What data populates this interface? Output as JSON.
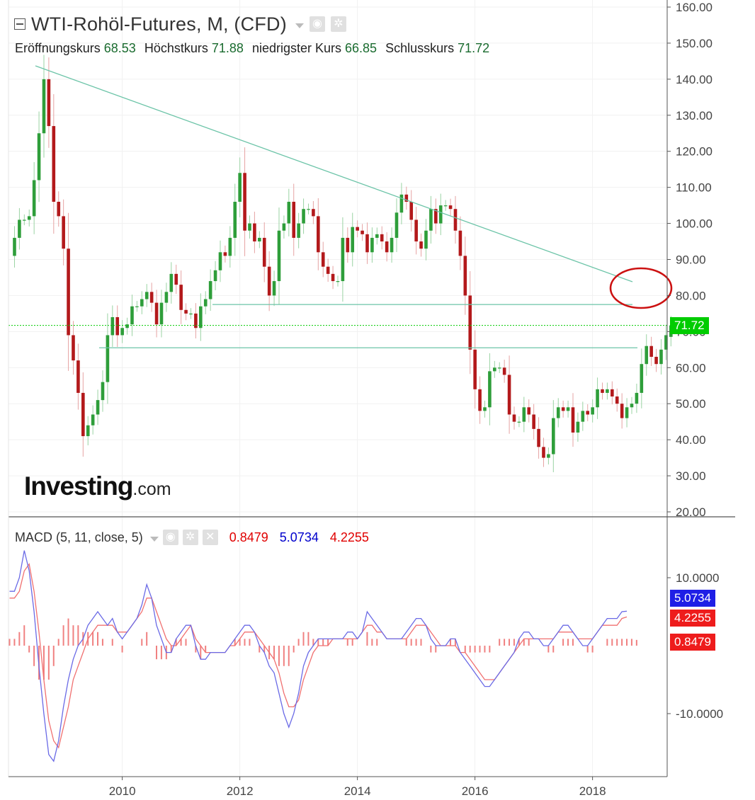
{
  "header": {
    "title": "WTI-Rohöl-Futures, M, (CFD)",
    "ohlc": [
      {
        "label": "Eröffnungskurs",
        "value": "68.53"
      },
      {
        "label": "Höchstkurs",
        "value": "71.88"
      },
      {
        "label": "niedrigster Kurs",
        "value": "66.85"
      },
      {
        "label": "Schlusskurs",
        "value": "71.72"
      }
    ]
  },
  "logo": {
    "text": "Investing",
    "suffix": ".com"
  },
  "macd_panel": {
    "label": "MACD (5, 11, close, 5)",
    "values": [
      "0.8479",
      "5.0734",
      "4.2255"
    ]
  },
  "colors": {
    "up": "#2e9e3a",
    "down": "#b3191b",
    "trend": "#6cc4a8",
    "current_price": "#00cc00",
    "macd_line": "#6a6ae6",
    "signal_line": "#f07070",
    "histogram": "#f08080",
    "annotation_circle": "#cc1111"
  },
  "chart_data": [
    {
      "type": "candlestick",
      "title": "WTI-Rohöl-Futures, M, (CFD)",
      "interval": "monthly",
      "y_ticks": [
        "160.00",
        "150.00",
        "140.00",
        "130.00",
        "120.00",
        "110.00",
        "100.00",
        "90.00",
        "80.00",
        "70.00",
        "60.00",
        "50.00",
        "40.00",
        "30.00",
        "20.00"
      ],
      "ylim": [
        20,
        160
      ],
      "x_ticks": [
        "2010",
        "2012",
        "2014",
        "2016",
        "2018"
      ],
      "x_start": 2008.083,
      "x_end": 2019.25,
      "current_price": {
        "label": "71.72",
        "value": 71.72
      },
      "series": [
        {
          "name": "",
          "closes": [
            96,
            101,
            101,
            102,
            112,
            125,
            140,
            127,
            106,
            102,
            93,
            69,
            62,
            53,
            41,
            44,
            47,
            51,
            56,
            69,
            74,
            69,
            71,
            72,
            77,
            77,
            79,
            81,
            78,
            72,
            78,
            81,
            86,
            83,
            76,
            75,
            75,
            71,
            77,
            79,
            84,
            87,
            92,
            91,
            96,
            106,
            114,
            98,
            100,
            95,
            96,
            88,
            80,
            84,
            98,
            100,
            106,
            96,
            100,
            104,
            104,
            102,
            92,
            88,
            86,
            84,
            84,
            96,
            92,
            99,
            98,
            97,
            92,
            96,
            97,
            95,
            92,
            96,
            103,
            108,
            106,
            101,
            95,
            93,
            98,
            104,
            100,
            105,
            105,
            104,
            98,
            91,
            80,
            65,
            54,
            48,
            49,
            59,
            60,
            60,
            58,
            47,
            45,
            45,
            49,
            47,
            43,
            38,
            35,
            36,
            46,
            49,
            48,
            49,
            42,
            45,
            48,
            47,
            49,
            54,
            53,
            54,
            52,
            50,
            46,
            49,
            50,
            53,
            61,
            66,
            63,
            61,
            65,
            69,
            71.72
          ],
          "opens": [
            91,
            96,
            101,
            101,
            102,
            112,
            125,
            140,
            127,
            106,
            102,
            93,
            69,
            62,
            53,
            41,
            44,
            47,
            51,
            56,
            69,
            74,
            69,
            71,
            72,
            77,
            77,
            79,
            81,
            78,
            72,
            78,
            81,
            86,
            83,
            76,
            75,
            75,
            71,
            77,
            79,
            84,
            87,
            92,
            91,
            96,
            106,
            114,
            98,
            100,
            95,
            96,
            88,
            80,
            84,
            98,
            100,
            106,
            96,
            100,
            104,
            104,
            102,
            92,
            88,
            86,
            84,
            84,
            96,
            92,
            99,
            98,
            97,
            92,
            96,
            97,
            95,
            92,
            96,
            103,
            108,
            106,
            101,
            95,
            93,
            98,
            104,
            100,
            105,
            105,
            104,
            98,
            91,
            80,
            65,
            54,
            48,
            49,
            59,
            60,
            60,
            58,
            47,
            45,
            45,
            49,
            47,
            43,
            38,
            35,
            36,
            46,
            49,
            48,
            49,
            42,
            45,
            48,
            47,
            49,
            54,
            53,
            54,
            52,
            50,
            46,
            49,
            50,
            53,
            61,
            66,
            63,
            61,
            65,
            68.53
          ]
        }
      ]
    },
    {
      "type": "line",
      "title": "MACD (5, 11, close, 5)",
      "y_ticks": [
        "10.0000",
        "-10.0000"
      ],
      "ylim": [
        -20,
        20
      ],
      "x_ticks": [
        "2010",
        "2012",
        "2014",
        "2016",
        "2018"
      ],
      "series": [
        {
          "name": "",
          "values": [
            8,
            8,
            10,
            14,
            11,
            5,
            -3,
            -10,
            -16,
            -17,
            -14,
            -9,
            -5,
            -2,
            0,
            1,
            3,
            4,
            5,
            4,
            3,
            4,
            2,
            1,
            2,
            3,
            4,
            6,
            9,
            7,
            3,
            1,
            -1,
            -1,
            1,
            2,
            3,
            3,
            0,
            -2,
            -2,
            -1,
            -1,
            -1,
            -1,
            0,
            1,
            2,
            3,
            3,
            2,
            0,
            -1,
            -3,
            -4,
            -7,
            -10,
            -12,
            -10,
            -7,
            -3,
            -1,
            0,
            1,
            1,
            1,
            1,
            1,
            1,
            2,
            2,
            1,
            2,
            5,
            4,
            3,
            2,
            1,
            1,
            1,
            1,
            2,
            3,
            4,
            4,
            3,
            1,
            0,
            0,
            0,
            1,
            1,
            -1,
            -2,
            -3,
            -4,
            -5,
            -6,
            -6,
            -5,
            -4,
            -3,
            -2,
            -1,
            1,
            2,
            2,
            1,
            1,
            0,
            0,
            1,
            2,
            3,
            3,
            2,
            1,
            0,
            0,
            1,
            2,
            3,
            4,
            4,
            4,
            5,
            5.0734
          ]
        },
        {
          "name": "",
          "values": [
            7,
            7,
            8,
            11,
            12,
            8,
            2,
            -5,
            -11,
            -14,
            -15,
            -12,
            -9,
            -5,
            -3,
            -1,
            1,
            2,
            3,
            3,
            3,
            3,
            2,
            2,
            2,
            3,
            4,
            5,
            7,
            7,
            5,
            3,
            1,
            0,
            0,
            1,
            2,
            3,
            1,
            0,
            -1,
            -1,
            -1,
            -1,
            -1,
            0,
            0,
            1,
            2,
            2,
            2,
            1,
            0,
            -1,
            -2,
            -4,
            -7,
            -9,
            -9,
            -8,
            -5,
            -3,
            -1,
            0,
            0,
            0,
            1,
            1,
            1,
            1,
            1,
            1,
            2,
            3,
            3,
            2,
            2,
            1,
            1,
            1,
            1,
            1,
            2,
            3,
            3,
            3,
            2,
            1,
            0,
            0,
            0,
            0,
            -1,
            -1,
            -2,
            -3,
            -4,
            -5,
            -5,
            -5,
            -4,
            -3,
            -2,
            -1,
            0,
            1,
            1,
            1,
            1,
            1,
            1,
            1,
            2,
            2,
            2,
            2,
            1,
            1,
            1,
            1,
            2,
            3,
            3,
            3,
            3,
            4,
            4.2255
          ]
        },
        {
          "name": "",
          "values": [
            1,
            1,
            2,
            3,
            -1,
            -3,
            -5,
            -5,
            -5,
            -3,
            1,
            3,
            4,
            3,
            3,
            2,
            2,
            2,
            2,
            1,
            0,
            1,
            0,
            -1,
            0,
            0,
            0,
            1,
            2,
            0,
            -2,
            -2,
            -2,
            -1,
            1,
            1,
            1,
            0,
            -1,
            -2,
            -1,
            0,
            0,
            0,
            0,
            0,
            1,
            1,
            1,
            1,
            0,
            -1,
            -1,
            -2,
            -2,
            -3,
            -3,
            -3,
            -1,
            1,
            2,
            2,
            1,
            1,
            1,
            1,
            0,
            0,
            0,
            1,
            1,
            0,
            0,
            2,
            1,
            1,
            0,
            0,
            0,
            0,
            0,
            1,
            1,
            1,
            1,
            0,
            -1,
            -1,
            0,
            0,
            1,
            1,
            0,
            -1,
            -1,
            -1,
            -1,
            -1,
            -1,
            0,
            1,
            1,
            1,
            1,
            1,
            1,
            1,
            0,
            0,
            0,
            -1,
            -1,
            0,
            1,
            1,
            1,
            0,
            0,
            -1,
            -1,
            0,
            0,
            1,
            1,
            1,
            1,
            1,
            1,
            0.8479
          ]
        }
      ]
    }
  ]
}
